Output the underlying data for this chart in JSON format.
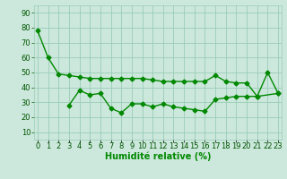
{
  "x_all": [
    0,
    1,
    2,
    3,
    4,
    5,
    6,
    7,
    8,
    9,
    10,
    11,
    12,
    13,
    14,
    15,
    16,
    17,
    18,
    19,
    20,
    21,
    22,
    23
  ],
  "line1_y": [
    78,
    60,
    49,
    48,
    47,
    46,
    46,
    46,
    46,
    46,
    46,
    45,
    44,
    44,
    44,
    44,
    44,
    48,
    44,
    43,
    43,
    34,
    50,
    36
  ],
  "line2_y": [
    null,
    null,
    null,
    28,
    38,
    35,
    36,
    26,
    23,
    29,
    29,
    27,
    29,
    27,
    26,
    25,
    24,
    32,
    33,
    34,
    34,
    34,
    null,
    36
  ],
  "bg_color": "#cce8dc",
  "grid_color": "#99ccb8",
  "line_color": "#008800",
  "marker": "D",
  "markersize": 2.5,
  "linewidth": 1.0,
  "xlabel": "Humidité relative (%)",
  "xlabel_color": "#008800",
  "xlabel_fontsize": 7,
  "ylabel_ticks": [
    10,
    20,
    30,
    40,
    50,
    60,
    70,
    80,
    90
  ],
  "xlim": [
    -0.3,
    23.3
  ],
  "ylim": [
    5,
    95
  ],
  "tick_fontsize": 6,
  "tick_color": "#005500"
}
